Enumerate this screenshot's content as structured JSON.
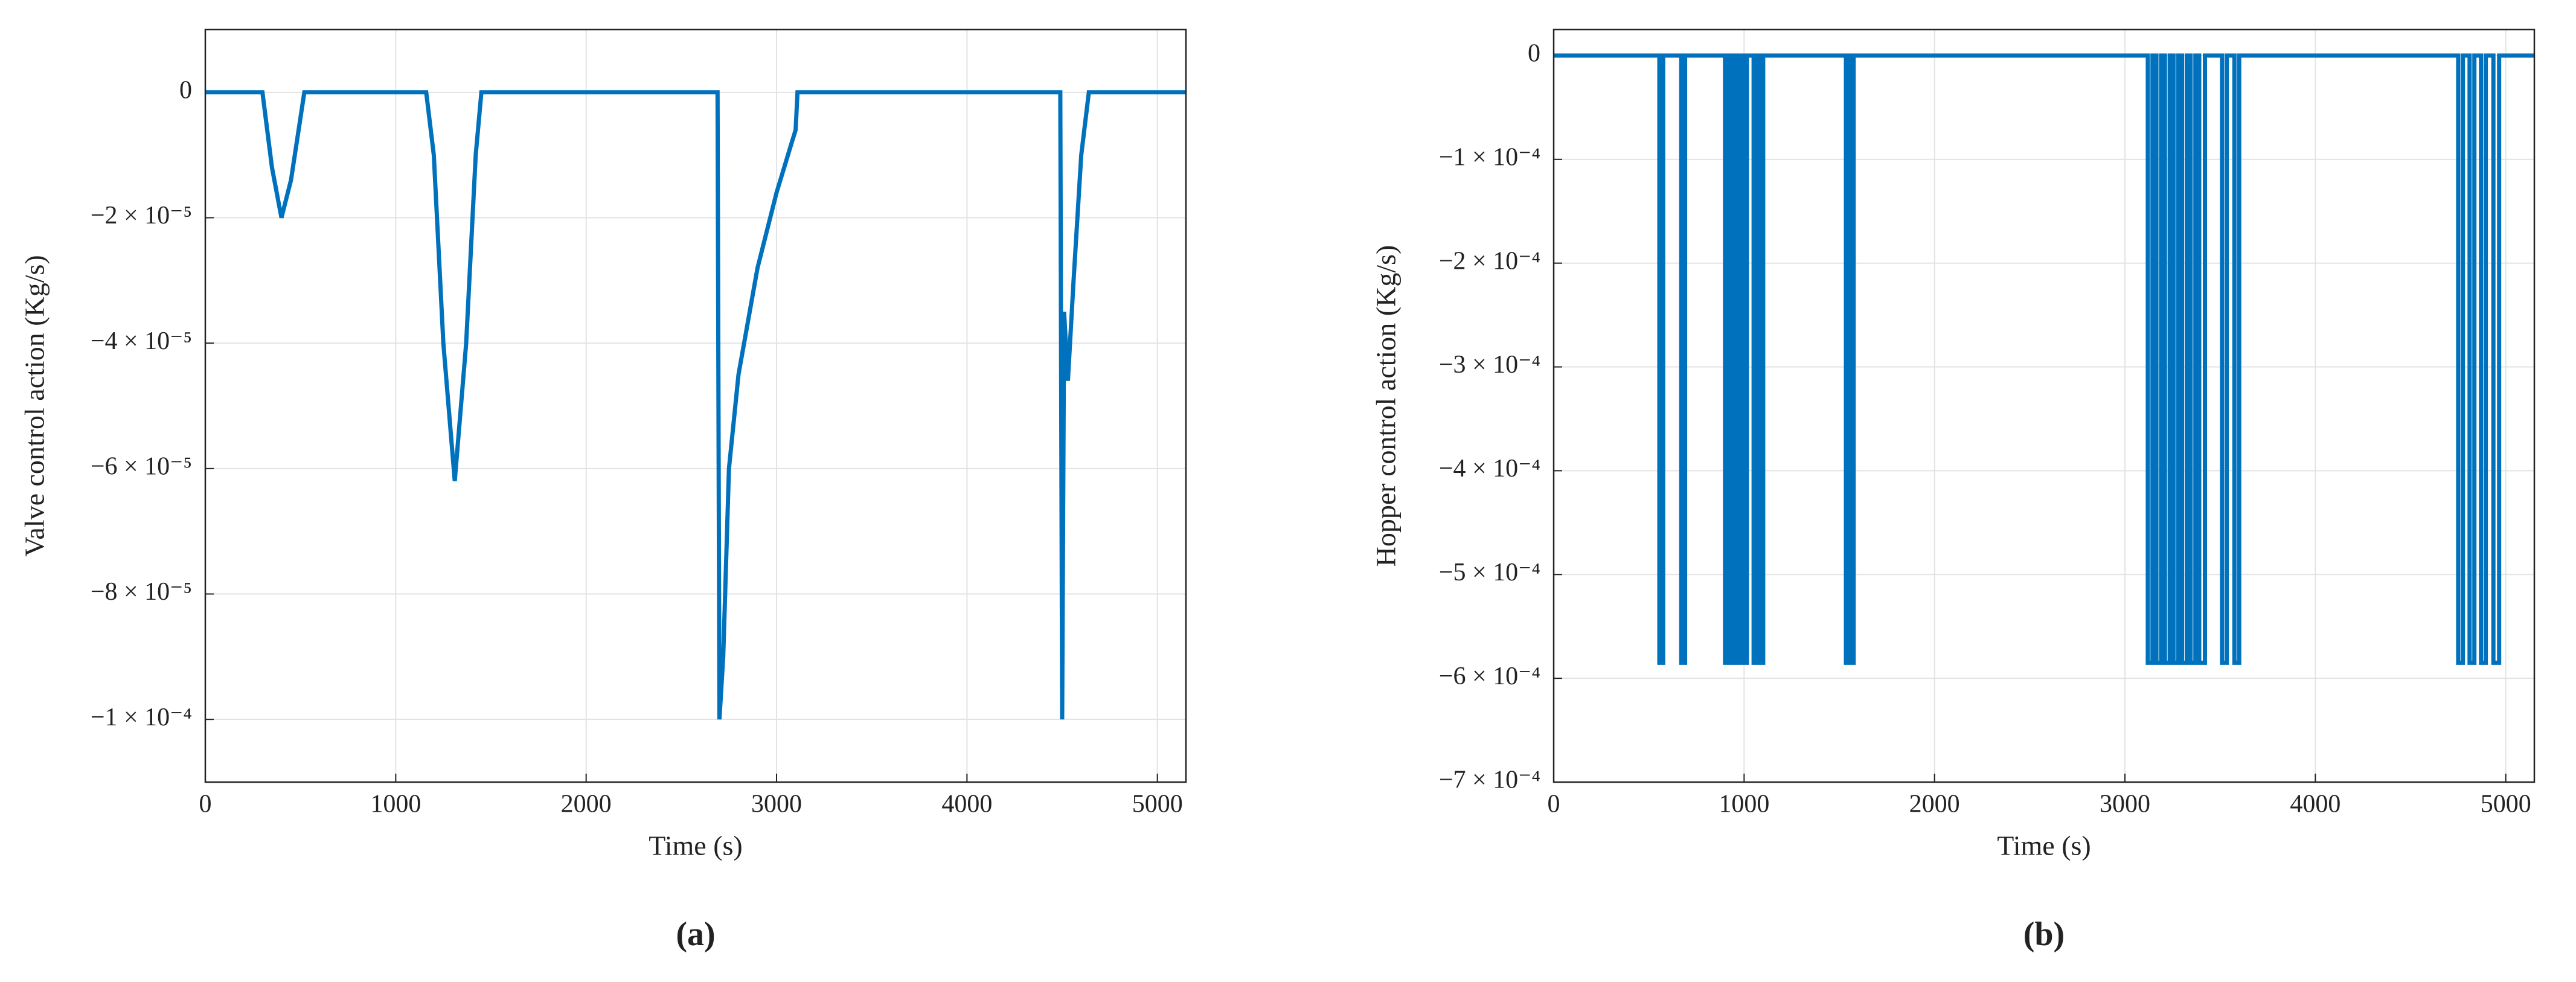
{
  "chart_data": [
    {
      "type": "line",
      "caption": "(a)",
      "xlabel": "Time (s)",
      "ylabel": "Valve control action (Kg/s)",
      "color": "#0072bd",
      "grid": true,
      "xlim": [
        0,
        5150
      ],
      "ylim": [
        -0.00011,
        1e-05
      ],
      "xticks": [
        0,
        1000,
        2000,
        3000,
        4000,
        5000
      ],
      "yticks": [
        0,
        {
          "value": -2e-05,
          "label": "−2 × 10⁻⁵"
        },
        {
          "value": -4e-05,
          "label": "−4 × 10⁻⁵"
        },
        {
          "value": -6e-05,
          "label": "−6 × 10⁻⁵"
        },
        {
          "value": -8e-05,
          "label": "−8 × 10⁻⁵"
        },
        {
          "value": -0.0001,
          "label": "−1 × 10⁻⁴"
        }
      ],
      "x": [
        0,
        300,
        350,
        400,
        450,
        520,
        1160,
        1200,
        1250,
        1310,
        1370,
        1420,
        1450,
        2690,
        2700,
        2720,
        2750,
        2800,
        2900,
        3000,
        3080,
        3100,
        3110,
        4490,
        4500,
        4510,
        4530,
        4560,
        4600,
        4640,
        5150
      ],
      "values": [
        0,
        0,
        -1.2e-05,
        -2e-05,
        -1.4e-05,
        0,
        0,
        -1e-05,
        -4e-05,
        -6.2e-05,
        -4e-05,
        -1e-05,
        0,
        0,
        -0.0001,
        -9e-05,
        -6e-05,
        -4.5e-05,
        -2.8e-05,
        -1.6e-05,
        -8e-06,
        -6e-06,
        0,
        0,
        -0.0001,
        -3.5e-05,
        -4.6e-05,
        -3e-05,
        -1e-05,
        0,
        0
      ]
    },
    {
      "type": "line",
      "caption": "(b)",
      "xlabel": "Time (s)",
      "ylabel": "Hopper control action (Kg/s)",
      "color": "#0072bd",
      "grid": true,
      "xlim": [
        0,
        5150
      ],
      "ylim": [
        -0.0007,
        2.5e-05
      ],
      "xticks": [
        0,
        1000,
        2000,
        3000,
        4000,
        5000
      ],
      "yticks": [
        0,
        {
          "value": -0.0001,
          "label": "−1 × 10⁻⁴"
        },
        {
          "value": -0.0002,
          "label": "−2 × 10⁻⁴"
        },
        {
          "value": -0.0003,
          "label": "−3 × 10⁻⁴"
        },
        {
          "value": -0.0004,
          "label": "−4 × 10⁻⁴"
        },
        {
          "value": -0.0005,
          "label": "−5 × 10⁻⁴"
        },
        {
          "value": -0.0006,
          "label": "−6 × 10⁻⁴"
        },
        {
          "value": -0.0007,
          "label": "−7 × 10⁻⁴"
        }
      ],
      "x": [
        0,
        555,
        555,
        575,
        575,
        670,
        670,
        690,
        690,
        900,
        900,
        920,
        920,
        935,
        935,
        955,
        955,
        970,
        970,
        990,
        990,
        1000,
        1000,
        1015,
        1015,
        1050,
        1050,
        1070,
        1070,
        1080,
        1080,
        1100,
        1100,
        1535,
        1535,
        1550,
        1550,
        1560,
        1560,
        1575,
        1575,
        3120,
        3120,
        3145,
        3145,
        3165,
        3165,
        3190,
        3190,
        3210,
        3210,
        3235,
        3235,
        3255,
        3255,
        3280,
        3280,
        3300,
        3300,
        3325,
        3325,
        3345,
        3345,
        3370,
        3370,
        3390,
        3390,
        3420,
        3420,
        3510,
        3510,
        3535,
        3535,
        3575,
        3575,
        3600,
        3600,
        4750,
        4750,
        4775,
        4775,
        4810,
        4810,
        4835,
        4835,
        4870,
        4870,
        4895,
        4895,
        4935,
        4935,
        4965,
        4965,
        5150
      ],
      "values": [
        0,
        0,
        -0.000585,
        -0.000585,
        0,
        0,
        -0.000585,
        -0.000585,
        0,
        0,
        -0.000585,
        -0.000585,
        0,
        0,
        -0.000585,
        -0.000585,
        0,
        0,
        -0.000585,
        -0.000585,
        0,
        0,
        -0.000585,
        -0.000585,
        0,
        0,
        -0.000585,
        -0.000585,
        0,
        0,
        -0.000585,
        -0.000585,
        0,
        0,
        -0.000585,
        -0.000585,
        0,
        0,
        -0.000585,
        -0.000585,
        0,
        0,
        -0.000585,
        -0.000585,
        0,
        0,
        -0.000585,
        -0.000585,
        0,
        0,
        -0.000585,
        -0.000585,
        0,
        0,
        -0.000585,
        -0.000585,
        0,
        0,
        -0.000585,
        -0.000585,
        0,
        0,
        -0.000585,
        -0.000585,
        0,
        0,
        -0.000585,
        -0.000585,
        0,
        0,
        -0.000585,
        -0.000585,
        0,
        0,
        -0.000585,
        -0.000585,
        0,
        0,
        -0.000585,
        -0.000585,
        0,
        0,
        -0.000585,
        -0.000585,
        0,
        0,
        -0.000585,
        -0.000585,
        0,
        0,
        -0.000585,
        -0.000585,
        0,
        0
      ]
    }
  ]
}
